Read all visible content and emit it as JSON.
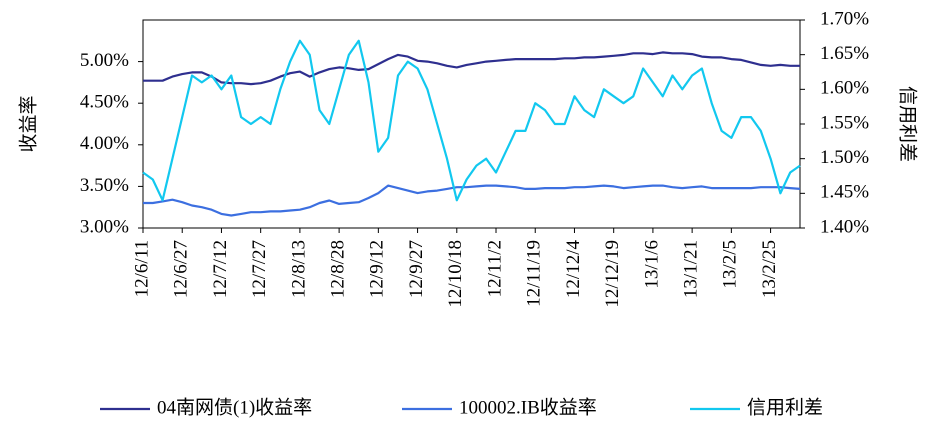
{
  "chart_data": {
    "type": "line",
    "ylabel": "收益率",
    "y2label": "信用利差",
    "categories": [
      "12/6/11",
      null,
      null,
      null,
      "12/6/27",
      null,
      null,
      null,
      "12/7/12",
      null,
      null,
      null,
      "12/7/27",
      null,
      null,
      null,
      "12/8/13",
      null,
      null,
      null,
      "12/8/28",
      null,
      null,
      null,
      "12/9/12",
      null,
      null,
      null,
      "12/9/27",
      null,
      null,
      null,
      "12/10/18",
      null,
      null,
      null,
      "12/11/2",
      null,
      null,
      null,
      "12/11/19",
      null,
      null,
      null,
      "12/12/4",
      null,
      null,
      null,
      "12/12/19",
      null,
      null,
      null,
      "13/1/6",
      null,
      null,
      null,
      "13/1/21",
      null,
      null,
      null,
      "13/2/5",
      null,
      null,
      null,
      "13/2/25",
      null,
      null,
      null
    ],
    "series": [
      {
        "name": "04南网债(1)收益率",
        "color": "#2e2f8f",
        "values": [
          4.77,
          4.77,
          4.77,
          4.82,
          4.85,
          4.87,
          4.87,
          4.82,
          4.75,
          4.74,
          4.74,
          4.73,
          4.74,
          4.77,
          4.82,
          4.86,
          4.88,
          4.82,
          4.87,
          4.91,
          4.93,
          4.92,
          4.9,
          4.91,
          4.97,
          5.03,
          5.08,
          5.06,
          5.01,
          5.0,
          4.98,
          4.95,
          4.93,
          4.96,
          4.98,
          5.0,
          5.01,
          5.02,
          5.03,
          5.03,
          5.03,
          5.03,
          5.03,
          5.04,
          5.04,
          5.05,
          5.05,
          5.06,
          5.07,
          5.08,
          5.1,
          5.1,
          5.09,
          5.11,
          5.1,
          5.1,
          5.09,
          5.06,
          5.05,
          5.05,
          5.03,
          5.02,
          4.99,
          4.96,
          4.95,
          4.96,
          4.95,
          4.95
        ]
      },
      {
        "name": "100002.IB收益率",
        "color": "#3c6fe0",
        "values": [
          3.3,
          3.3,
          3.32,
          3.34,
          3.31,
          3.27,
          3.25,
          3.22,
          3.17,
          3.15,
          3.17,
          3.19,
          3.19,
          3.2,
          3.2,
          3.21,
          3.22,
          3.25,
          3.3,
          3.33,
          3.29,
          3.3,
          3.31,
          3.36,
          3.42,
          3.51,
          3.48,
          3.45,
          3.42,
          3.44,
          3.45,
          3.47,
          3.49,
          3.49,
          3.5,
          3.51,
          3.51,
          3.5,
          3.49,
          3.47,
          3.47,
          3.48,
          3.48,
          3.48,
          3.49,
          3.49,
          3.5,
          3.51,
          3.5,
          3.48,
          3.49,
          3.5,
          3.51,
          3.51,
          3.49,
          3.48,
          3.49,
          3.5,
          3.48,
          3.48,
          3.48,
          3.48,
          3.48,
          3.49,
          3.49,
          3.49,
          3.48,
          3.47
        ]
      },
      {
        "name": "信用利差",
        "color": "#12c8ef",
        "axis": "y2",
        "values": [
          1.48,
          1.47,
          1.44,
          1.5,
          1.56,
          1.62,
          1.61,
          1.62,
          1.6,
          1.62,
          1.56,
          1.55,
          1.56,
          1.55,
          1.6,
          1.64,
          1.67,
          1.65,
          1.57,
          1.55,
          1.6,
          1.65,
          1.67,
          1.61,
          1.51,
          1.53,
          1.62,
          1.64,
          1.63,
          1.6,
          1.55,
          1.5,
          1.44,
          1.47,
          1.49,
          1.5,
          1.48,
          1.51,
          1.54,
          1.54,
          1.58,
          1.57,
          1.55,
          1.55,
          1.59,
          1.57,
          1.56,
          1.6,
          1.59,
          1.58,
          1.59,
          1.63,
          1.61,
          1.59,
          1.62,
          1.6,
          1.62,
          1.63,
          1.58,
          1.54,
          1.53,
          1.56,
          1.56,
          1.54,
          1.5,
          1.45,
          1.48,
          1.49
        ]
      }
    ],
    "ylim": [
      3,
      5.5
    ],
    "yticks": [
      {
        "value": 3,
        "label": "3.00%"
      },
      {
        "value": 3.5,
        "label": "3.50%"
      },
      {
        "value": 4,
        "label": "4.00%"
      },
      {
        "value": 4.5,
        "label": "4.50%"
      },
      {
        "value": 5,
        "label": "5.00%"
      }
    ],
    "y2lim": [
      1.4,
      1.7
    ],
    "y2ticks": [
      {
        "value": 1.4,
        "label": "1.40%"
      },
      {
        "value": 1.45,
        "label": "1.45%"
      },
      {
        "value": 1.5,
        "label": "1.50%"
      },
      {
        "value": 1.55,
        "label": "1.55%"
      },
      {
        "value": 1.6,
        "label": "1.60%"
      },
      {
        "value": 1.65,
        "label": "1.65%"
      },
      {
        "value": 1.7,
        "label": "1.70%"
      }
    ],
    "grid": false,
    "legend": "bottom"
  }
}
